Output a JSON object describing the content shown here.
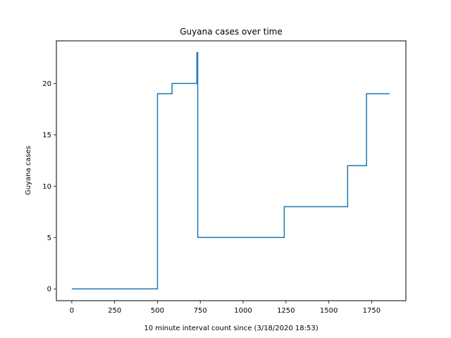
{
  "chart_data": {
    "type": "line",
    "title": "Guyana cases over time",
    "xlabel": "10 minute interval count since (3/18/2020 18:53)",
    "ylabel": "Guyana cases",
    "xlim": [
      -90,
      1950
    ],
    "ylim": [
      -1.15,
      24.15
    ],
    "x_ticks": [
      0,
      250,
      500,
      750,
      1000,
      1250,
      1500,
      1750
    ],
    "y_ticks": [
      0,
      5,
      10,
      15,
      20
    ],
    "grid": false,
    "line_color": "#1f77b4",
    "series": [
      {
        "x": [
          0,
          500,
          500,
          585,
          585,
          730,
          730,
          735,
          735,
          1240,
          1240,
          1610,
          1610,
          1720,
          1720,
          1855
        ],
        "y": [
          0,
          0,
          19,
          19,
          20,
          20,
          23,
          23,
          5,
          5,
          8,
          8,
          12,
          12,
          19,
          19
        ]
      }
    ]
  }
}
